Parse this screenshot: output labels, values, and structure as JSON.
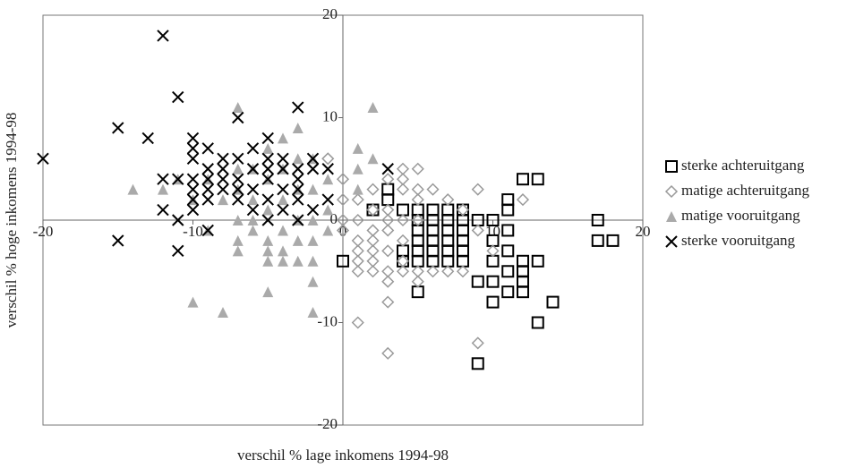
{
  "chart_data": {
    "type": "scatter",
    "x_label": "verschil % lage inkomens 1994-98",
    "y_label": "verschil % hoge inkomens 1994-98",
    "xlim": [
      -20,
      20
    ],
    "ylim": [
      -20,
      20
    ],
    "xticks": [
      -20,
      -10,
      0,
      10,
      20
    ],
    "yticks": [
      20,
      10,
      0,
      -10,
      -20
    ],
    "legend": "right",
    "series": [
      {
        "name": "sterke achteruitgang",
        "color": "#000000",
        "marker": "square",
        "x": [
          17,
          17,
          18,
          0,
          3,
          3,
          2,
          4,
          4,
          4,
          5,
          5,
          5,
          5,
          5,
          5,
          5,
          6,
          6,
          6,
          6,
          6,
          6,
          7,
          7,
          7,
          7,
          7,
          7,
          8,
          8,
          8,
          8,
          8,
          8,
          9,
          9,
          9,
          10,
          10,
          10,
          10,
          10,
          11,
          11,
          11,
          11,
          11,
          11,
          12,
          12,
          12,
          12,
          12,
          13,
          13,
          13,
          14
        ],
        "y": [
          0,
          -2,
          -2,
          -4,
          3,
          2,
          1,
          1,
          -3,
          -4,
          1,
          0,
          -1,
          -2,
          -3,
          -4,
          -7,
          1,
          0,
          -1,
          -2,
          -3,
          -4,
          1,
          0,
          -1,
          -2,
          -3,
          -4,
          1,
          0,
          -1,
          -2,
          -3,
          -4,
          0,
          -6,
          -14,
          0,
          -2,
          -4,
          -6,
          -8,
          2,
          1,
          -1,
          -3,
          -5,
          -7,
          4,
          -4,
          -5,
          -6,
          -7,
          4,
          -4,
          -10,
          -8
        ]
      },
      {
        "name": "matige achteruitgang",
        "color": "#999999",
        "marker": "diamond",
        "x": [
          -1,
          0,
          0,
          0,
          0,
          1,
          1,
          1,
          1,
          1,
          1,
          1,
          2,
          2,
          2,
          2,
          2,
          2,
          2,
          3,
          3,
          3,
          3,
          3,
          3,
          3,
          3,
          3,
          4,
          4,
          4,
          4,
          4,
          4,
          4,
          5,
          5,
          5,
          5,
          5,
          5,
          6,
          6,
          7,
          7,
          8,
          8,
          9,
          9,
          9,
          10,
          12
        ],
        "y": [
          6,
          4,
          2,
          0,
          -1,
          2,
          0,
          -2,
          -3,
          -4,
          -5,
          -10,
          3,
          1,
          -1,
          -2,
          -3,
          -4,
          -5,
          4,
          1,
          0,
          -1,
          -3,
          -5,
          -6,
          -8,
          -13,
          5,
          4,
          3,
          0,
          -2,
          -4,
          -5,
          5,
          3,
          2,
          0,
          -5,
          -6,
          3,
          -5,
          2,
          -5,
          1,
          -5,
          3,
          -1,
          -12,
          -3,
          2
        ]
      },
      {
        "name": "matige vooruitgang",
        "color": "#aaaaaa",
        "marker": "triangle",
        "x": [
          -14,
          -12,
          -11,
          -10,
          -10,
          -9,
          -9,
          -8,
          -8,
          -7,
          -7,
          -7,
          -7,
          -7,
          -7,
          -6,
          -6,
          -6,
          -6,
          -5,
          -5,
          -5,
          -5,
          -5,
          -5,
          -5,
          -4,
          -4,
          -4,
          -4,
          -4,
          -4,
          -3,
          -3,
          -3,
          -3,
          -3,
          -3,
          -2,
          -2,
          -2,
          -2,
          -2,
          -2,
          -2,
          -1,
          -1,
          -1,
          1,
          1,
          1,
          2,
          2
        ],
        "y": [
          3,
          3,
          4,
          2,
          -8,
          4,
          -1,
          2,
          -9,
          11,
          5,
          3,
          0,
          -2,
          -3,
          5,
          2,
          0,
          -1,
          7,
          4,
          1,
          -2,
          -3,
          -4,
          -7,
          8,
          5,
          2,
          -1,
          -3,
          -4,
          9,
          6,
          3,
          0,
          -2,
          -4,
          6,
          3,
          0,
          -2,
          -4,
          -6,
          -9,
          4,
          1,
          -1,
          7,
          5,
          3,
          11,
          6
        ]
      },
      {
        "name": "sterke vooruitgang",
        "color": "#000000",
        "marker": "x",
        "x": [
          -20,
          -15,
          -15,
          -13,
          -12,
          -12,
          -12,
          -11,
          -11,
          -11,
          -11,
          -10,
          -10,
          -10,
          -10,
          -10,
          -10,
          -10,
          -9,
          -9,
          -9,
          -9,
          -9,
          -9,
          -8,
          -8,
          -8,
          -8,
          -7,
          -7,
          -7,
          -7,
          -7,
          -6,
          -6,
          -6,
          -6,
          -5,
          -5,
          -5,
          -5,
          -5,
          -5,
          -4,
          -4,
          -4,
          -4,
          -3,
          -3,
          -3,
          -3,
          -3,
          -3,
          -2,
          -2,
          -2,
          -1,
          -1,
          3
        ],
        "y": [
          6,
          9,
          -2,
          8,
          18,
          4,
          1,
          12,
          4,
          0,
          -3,
          8,
          7,
          6,
          4,
          3,
          2,
          1,
          7,
          5,
          4,
          3,
          2,
          -1,
          6,
          5,
          4,
          3,
          10,
          6,
          4,
          3,
          2,
          7,
          5,
          3,
          1,
          8,
          6,
          5,
          4,
          2,
          0,
          6,
          5,
          3,
          1,
          11,
          5,
          4,
          3,
          2,
          0,
          6,
          5,
          1,
          5,
          2,
          5
        ]
      }
    ]
  }
}
